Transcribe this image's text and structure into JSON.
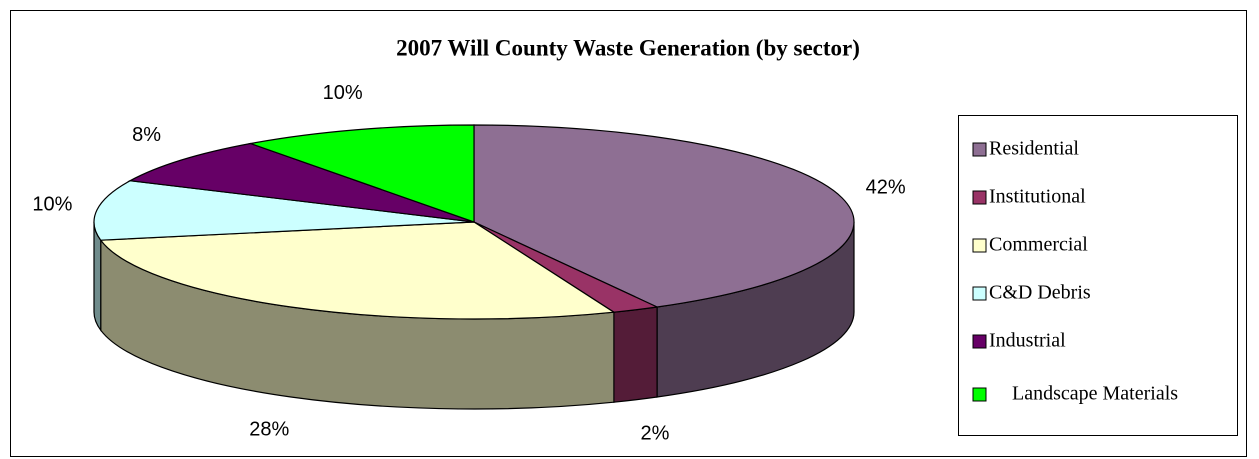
{
  "chart_data": {
    "type": "pie3d",
    "title": "2007 Will County Waste Generation (by sector)",
    "categories": [
      "Residential",
      "Institutional",
      "Commercial",
      "C&D Debris",
      "Industrial",
      "Landscape Materials"
    ],
    "values": [
      42,
      2,
      28,
      10,
      8,
      10
    ],
    "value_labels": [
      "42%",
      "2%",
      "28%",
      "10%",
      "8%",
      "10%"
    ],
    "colors": [
      "#8e6f93",
      "#993366",
      "#ffffcc",
      "#ccffff",
      "#660066",
      "#00ff00"
    ],
    "legend": "right"
  }
}
